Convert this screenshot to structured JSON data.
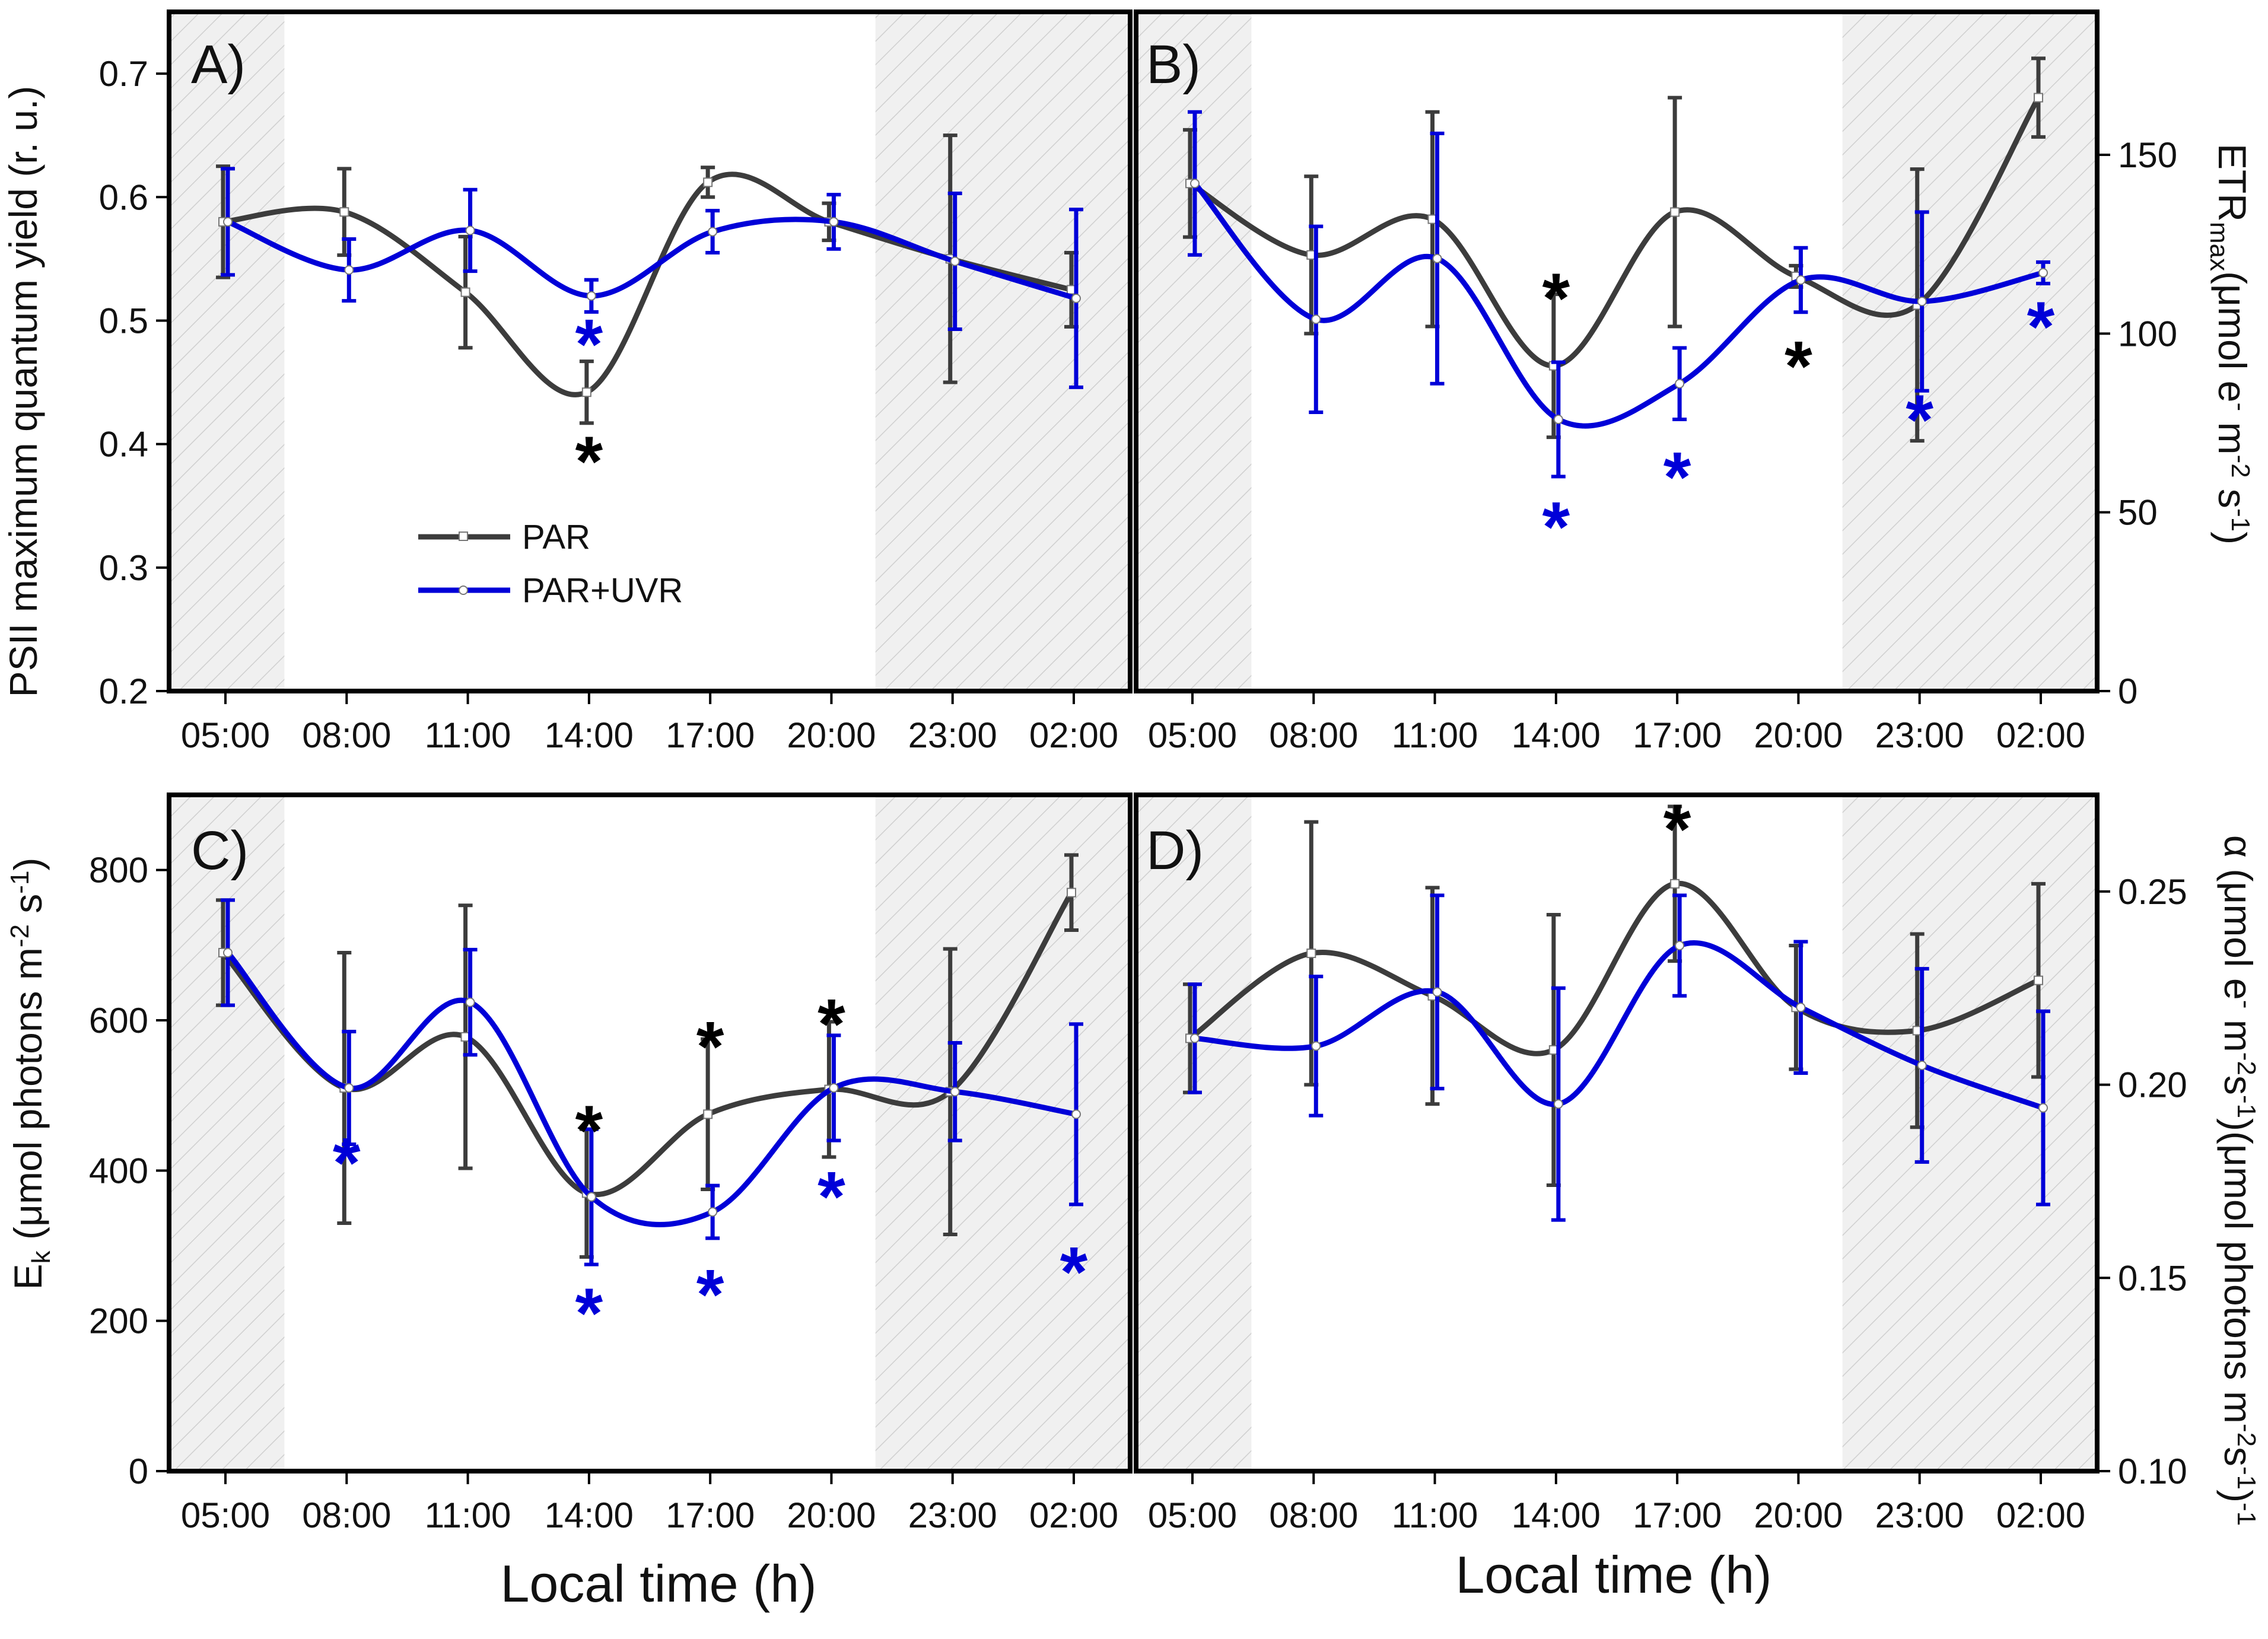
{
  "figure": {
    "xlabel_left": "Local time (h)",
    "xlabel_right": "Local time (h)",
    "legend": {
      "entries": [
        "PAR",
        "PAR+UVR"
      ]
    },
    "colors": {
      "par": "#3c3c3c",
      "uvr": "#0000d8",
      "night_shade": "#efefef",
      "hatch": "#cfcfcf"
    }
  },
  "chart_data": [
    {
      "panel": "A)",
      "type": "line",
      "title": "",
      "categories": [
        "05:00",
        "08:00",
        "11:00",
        "14:00",
        "17:00",
        "20:00",
        "23:00",
        "02:00"
      ],
      "ylabel": "PSII maximum quantum yield (r. u.)",
      "yaxis_side": "left",
      "ylim": [
        0.2,
        0.75
      ],
      "yticks": [
        "0.2",
        "0.3",
        "0.4",
        "0.5",
        "0.6",
        "0.7"
      ],
      "series": [
        {
          "name": "PAR",
          "values": [
            0.58,
            0.588,
            0.523,
            0.442,
            0.612,
            0.58,
            0.55,
            0.525
          ],
          "err": [
            0.045,
            0.035,
            0.045,
            0.025,
            0.012,
            0.015,
            0.1,
            0.03
          ]
        },
        {
          "name": "PAR+UVR",
          "values": [
            0.58,
            0.541,
            0.573,
            0.52,
            0.572,
            0.58,
            0.548,
            0.518
          ],
          "err": [
            0.043,
            0.025,
            0.033,
            0.013,
            0.017,
            0.022,
            0.055,
            0.072
          ]
        }
      ],
      "stars": [
        {
          "series": "PAR",
          "category": "14:00",
          "value": 0.395,
          "label": "*"
        },
        {
          "series": "PAR+UVR",
          "category": "14:00",
          "value": 0.49,
          "label": "*"
        }
      ],
      "night_regions": [
        [
          "05:00",
          "06:00"
        ],
        [
          "20:50",
          "02:50"
        ]
      ]
    },
    {
      "panel": "B)",
      "type": "line",
      "categories": [
        "05:00",
        "08:00",
        "11:00",
        "14:00",
        "17:00",
        "20:00",
        "23:00",
        "02:00"
      ],
      "ylabel": "ETR",
      "ylabel_sub": "max",
      "ylabel_rest": "(μmol e",
      "ylabel_sup1": "-",
      "ylabel_rest2": " m",
      "ylabel_sup2": "-2",
      "ylabel_rest3": " s",
      "ylabel_sup3": "-1",
      "ylabel_end": ")",
      "yaxis_side": "right",
      "ylim": [
        0,
        190
      ],
      "yticks": [
        "0",
        "50",
        "100",
        "150"
      ],
      "series": [
        {
          "name": "PAR",
          "values": [
            142,
            122,
            132,
            91,
            134,
            116,
            108,
            166
          ],
          "err": [
            15,
            22,
            30,
            20,
            32,
            3,
            38,
            11
          ]
        },
        {
          "name": "PAR+UVR",
          "values": [
            142,
            104,
            121,
            76,
            86,
            115,
            109,
            117
          ],
          "err": [
            20,
            26,
            35,
            16,
            10,
            9,
            25,
            3
          ]
        }
      ],
      "stars": [
        {
          "series": "PAR",
          "category": "14:00",
          "value": 113,
          "label": "*"
        },
        {
          "series": "PAR",
          "category": "20:00",
          "value": 94,
          "label": "*"
        },
        {
          "series": "PAR+UVR",
          "category": "14:00",
          "value": 49,
          "label": "*"
        },
        {
          "series": "PAR+UVR",
          "category": "17:00",
          "value": 63,
          "label": "*"
        },
        {
          "series": "PAR+UVR",
          "category": "23:00",
          "value": 79,
          "label": "*"
        },
        {
          "series": "PAR+UVR",
          "category": "02:00",
          "value": 105,
          "label": "*"
        }
      ],
      "night_regions": [
        [
          "05:00",
          "06:00"
        ],
        [
          "20:50",
          "02:50"
        ]
      ]
    },
    {
      "panel": "C)",
      "type": "line",
      "categories": [
        "05:00",
        "08:00",
        "11:00",
        "14:00",
        "17:00",
        "20:00",
        "23:00",
        "02:00"
      ],
      "ylabel": "E",
      "ylabel_sub": "k",
      "ylabel_rest": " (μmol photons m",
      "ylabel_sup1": "-2",
      "ylabel_rest2": " s",
      "ylabel_sup2": "-1",
      "ylabel_end": ")",
      "yaxis_side": "left",
      "ylim": [
        0,
        900
      ],
      "yticks": [
        "0",
        "200",
        "400",
        "600",
        "800"
      ],
      "series": [
        {
          "name": "PAR",
          "values": [
            690,
            510,
            578,
            370,
            475,
            508,
            505,
            770
          ],
          "err": [
            70,
            180,
            175,
            85,
            100,
            90,
            190,
            50
          ]
        },
        {
          "name": "PAR+UVR",
          "values": [
            690,
            510,
            624,
            365,
            345,
            510,
            505,
            475
          ],
          "err": [
            70,
            75,
            70,
            90,
            35,
            70,
            65,
            120
          ]
        }
      ],
      "stars": [
        {
          "series": "PAR",
          "category": "14:00",
          "value": 468,
          "label": "*"
        },
        {
          "series": "PAR",
          "category": "17:00",
          "value": 580,
          "label": "*"
        },
        {
          "series": "PAR",
          "category": "20:00",
          "value": 610,
          "label": "*"
        },
        {
          "series": "PAR+UVR",
          "category": "08:00",
          "value": 425,
          "label": "*"
        },
        {
          "series": "PAR+UVR",
          "category": "14:00",
          "value": 225,
          "label": "*"
        },
        {
          "series": "PAR+UVR",
          "category": "17:00",
          "value": 250,
          "label": "*"
        },
        {
          "series": "PAR+UVR",
          "category": "20:00",
          "value": 380,
          "label": "*"
        },
        {
          "series": "PAR+UVR",
          "category": "02:00",
          "value": 280,
          "label": "*"
        }
      ],
      "night_regions": [
        [
          "05:00",
          "06:00"
        ],
        [
          "20:50",
          "02:50"
        ]
      ]
    },
    {
      "panel": "D)",
      "type": "line",
      "categories": [
        "05:00",
        "08:00",
        "11:00",
        "14:00",
        "17:00",
        "20:00",
        "23:00",
        "02:00"
      ],
      "ylabel": "α (μmol e",
      "ylabel_sup1": "-",
      "ylabel_rest": " m",
      "ylabel_sup2": "-2",
      "ylabel_rest2": "s",
      "ylabel_sup3": "-1",
      "ylabel_rest3": ")(μmol photons m",
      "ylabel_sup4": "-2",
      "ylabel_rest4": "s",
      "ylabel_sup5": "-1",
      "ylabel_end": ")",
      "ylabel_sup6": "-1",
      "yaxis_side": "right",
      "ylim": [
        0.1,
        0.275
      ],
      "yticks": [
        "0.10",
        "0.15",
        "0.20",
        "0.25"
      ],
      "series": [
        {
          "name": "PAR",
          "values": [
            0.212,
            0.234,
            0.223,
            0.209,
            0.252,
            0.22,
            0.214,
            0.227
          ],
          "err": [
            0.014,
            0.034,
            0.028,
            0.035,
            0.02,
            0.016,
            0.025,
            0.025
          ]
        },
        {
          "name": "PAR+UVR",
          "values": [
            0.212,
            0.21,
            0.224,
            0.195,
            0.236,
            0.22,
            0.205,
            0.194
          ],
          "err": [
            0.014,
            0.018,
            0.025,
            0.03,
            0.013,
            0.017,
            0.025,
            0.025
          ]
        }
      ],
      "stars": [
        {
          "series": "PAR",
          "category": "17:00",
          "value": 0.269,
          "label": "*"
        }
      ],
      "night_regions": [
        [
          "05:00",
          "06:00"
        ],
        [
          "20:50",
          "02:50"
        ]
      ]
    }
  ]
}
